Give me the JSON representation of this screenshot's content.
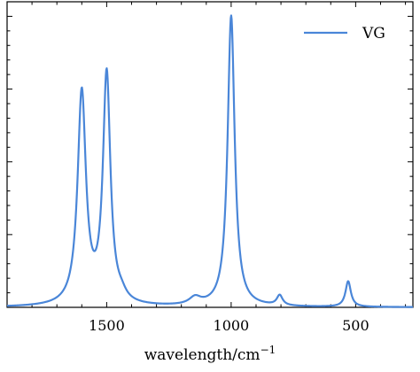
{
  "chart_data": {
    "type": "line",
    "title": "",
    "xlabel": "wavelength/cm",
    "xlabel_superscript": "−1",
    "ylabel": "",
    "xlim": [
      1900,
      270
    ],
    "ylim": [
      0,
      1.05
    ],
    "x_reversed": true,
    "xticks": [
      1500,
      1000,
      500
    ],
    "xtick_labels": [
      "1500",
      "1000",
      "500"
    ],
    "y_tick_labels_visible": false,
    "grid": false,
    "legend": {
      "placement": "top-right"
    },
    "series": [
      {
        "name": "VG",
        "color": "#4a86d8",
        "peaks": [
          {
            "x": 1600,
            "height": 0.73,
            "width": 20
          },
          {
            "x": 1500,
            "height": 0.79,
            "width": 18
          },
          {
            "x": 1000,
            "height": 1.0,
            "width": 17
          },
          {
            "x": 1145,
            "height": 0.025,
            "width": 28
          },
          {
            "x": 805,
            "height": 0.035,
            "width": 14
          },
          {
            "x": 530,
            "height": 0.088,
            "width": 13
          },
          {
            "x": 1440,
            "height": 0.02,
            "width": 22
          }
        ]
      }
    ]
  }
}
